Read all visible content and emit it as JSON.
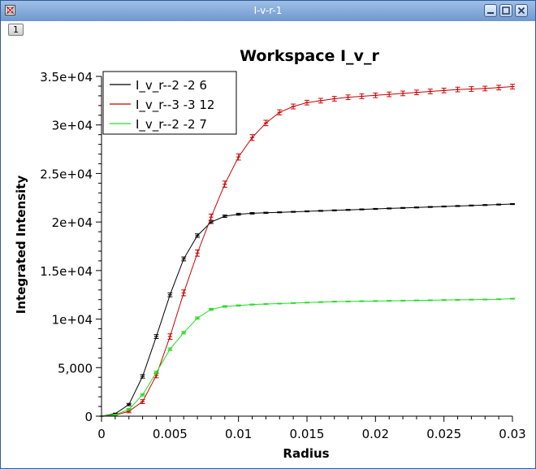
{
  "window": {
    "title": "I-v-r-1",
    "tab_label": "1",
    "icons": [
      "app-icon",
      "minimize-icon",
      "maximize-icon",
      "close-icon"
    ]
  },
  "chart_data": {
    "type": "line",
    "title": "Workspace I_v_r",
    "xlabel": "Radius",
    "ylabel": "Integrated Intensity",
    "xlim": [
      0,
      0.03
    ],
    "ylim": [
      0,
      35000
    ],
    "x_ticks": [
      "0",
      "0.005",
      "0.01",
      "0.015",
      "0.02",
      "0.025",
      "0.03"
    ],
    "x_tick_values": [
      0,
      0.005,
      0.01,
      0.015,
      0.02,
      0.025,
      0.03
    ],
    "y_ticks": [
      "0",
      "5,000",
      "1e+04",
      "1.5e+04",
      "2e+04",
      "2.5e+04",
      "3e+04",
      "3.5e+04"
    ],
    "y_tick_values": [
      0,
      5000,
      10000,
      15000,
      20000,
      25000,
      30000,
      35000
    ],
    "grid": false,
    "legend": "top-left",
    "x": [
      0,
      0.001,
      0.002,
      0.003,
      0.004,
      0.005,
      0.006,
      0.007,
      0.008,
      0.009,
      0.01,
      0.011,
      0.012,
      0.013,
      0.014,
      0.015,
      0.016,
      0.017,
      0.018,
      0.019,
      0.02,
      0.021,
      0.022,
      0.023,
      0.024,
      0.025,
      0.026,
      0.027,
      0.028,
      0.029,
      0.03
    ],
    "series": [
      {
        "name": "I_v_r--2 -2 6",
        "color": "#000000",
        "values": [
          0,
          250,
          1200,
          4100,
          8200,
          12500,
          16200,
          18600,
          20000,
          20600,
          20800,
          20900,
          20950,
          21000,
          21050,
          21100,
          21150,
          21200,
          21250,
          21300,
          21350,
          21400,
          21450,
          21500,
          21550,
          21600,
          21650,
          21700,
          21750,
          21800,
          21850
        ],
        "errors": [
          0,
          60,
          120,
          180,
          200,
          200,
          200,
          180,
          150,
          120,
          100,
          80,
          60,
          50,
          50,
          50,
          50,
          50,
          50,
          50,
          50,
          50,
          50,
          50,
          50,
          50,
          50,
          50,
          50,
          50,
          50
        ]
      },
      {
        "name": "I_v_r--3 -3 12",
        "color": "#cc0000",
        "values": [
          0,
          100,
          500,
          1500,
          4200,
          8200,
          12700,
          16800,
          20500,
          23900,
          26700,
          28700,
          30200,
          31300,
          31900,
          32300,
          32500,
          32700,
          32850,
          32950,
          33050,
          33150,
          33250,
          33350,
          33450,
          33550,
          33650,
          33700,
          33750,
          33850,
          33950
        ],
        "errors": [
          0,
          80,
          150,
          200,
          250,
          280,
          300,
          320,
          320,
          320,
          320,
          300,
          280,
          260,
          250,
          240,
          240,
          240,
          240,
          240,
          240,
          240,
          240,
          240,
          240,
          240,
          240,
          240,
          240,
          240,
          240
        ]
      },
      {
        "name": "I_v_r--2 -2 7",
        "color": "#22dd22",
        "values": [
          0,
          150,
          700,
          2200,
          4500,
          6900,
          8600,
          10100,
          11000,
          11300,
          11400,
          11500,
          11550,
          11600,
          11650,
          11700,
          11750,
          11800,
          11820,
          11840,
          11860,
          11880,
          11900,
          11920,
          11940,
          11960,
          11980,
          12000,
          12020,
          12040,
          12100
        ],
        "errors": [
          0,
          50,
          90,
          120,
          140,
          140,
          130,
          120,
          100,
          80,
          60,
          50,
          40,
          40,
          40,
          40,
          40,
          40,
          40,
          40,
          40,
          40,
          40,
          40,
          40,
          40,
          40,
          40,
          40,
          40,
          40
        ]
      }
    ]
  }
}
